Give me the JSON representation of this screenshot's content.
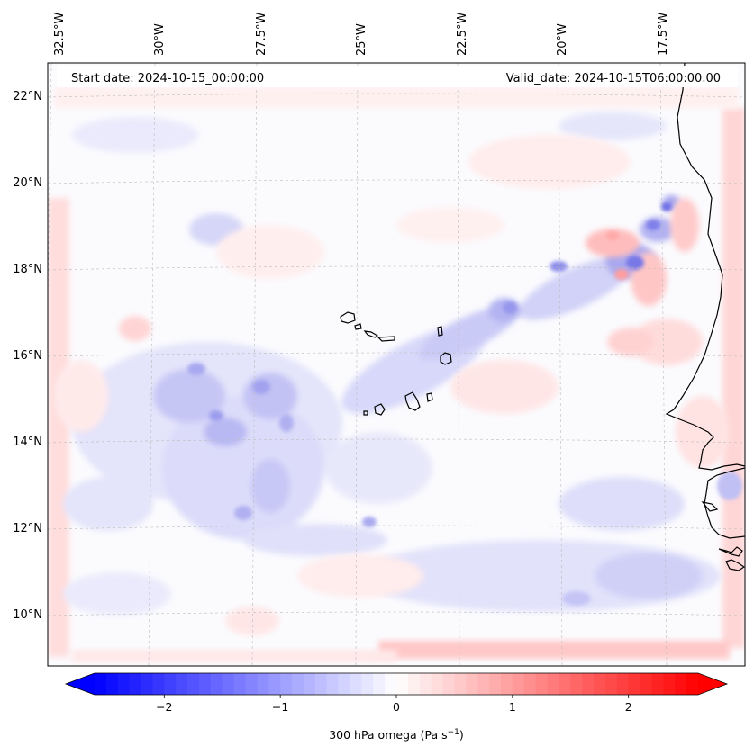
{
  "map": {
    "start_date": "Start date: 2024-10-15_00:00:00",
    "valid_date": "Valid_date: 2024-10-15T06:00:00.00",
    "lon_labels": [
      "32.5°W",
      "30°W",
      "27.5°W",
      "25°W",
      "22.5°W",
      "20°W",
      "17.5°W"
    ],
    "lat_labels": [
      "22°N",
      "20°N",
      "18°N",
      "16°N",
      "14°N",
      "12°N",
      "10°N"
    ],
    "field": "300 hPa omega",
    "extent": {
      "lon_min": -33.0,
      "lon_max": -15.5,
      "lat_min": 9.0,
      "lat_max": 22.6
    }
  },
  "colorbar": {
    "label_main": "300 hPa omega (Pa s",
    "label_sup": "−1",
    "label_close": ")",
    "tick_labels": [
      "−2",
      "−1",
      "0",
      "1",
      "2"
    ],
    "tick_values": [
      -2,
      -1,
      0,
      1,
      2
    ],
    "vmin": -2.6,
    "vmax": 2.6,
    "colors": {
      "min": "#0000ff",
      "mid": "#ffffff",
      "max": "#ff0000"
    }
  }
}
